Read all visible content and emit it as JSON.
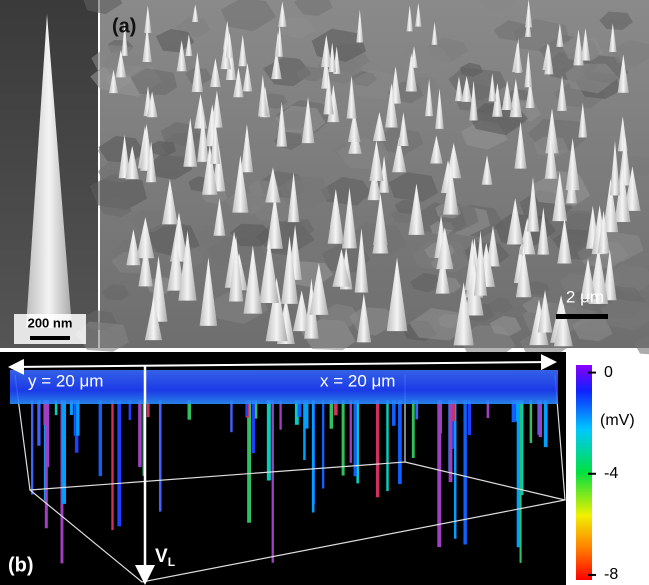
{
  "panel_a": {
    "label": "(a)",
    "inset_scale": "200 nm",
    "main_scale": "2 μm"
  },
  "panel_b": {
    "label": "(b)",
    "y_extent": "y = 20 μm",
    "x_extent": "x = 20 μm",
    "axis_label": {
      "symbol": "V",
      "subscript": "L"
    },
    "colorbar": {
      "unit": "(mV)",
      "ticks": [
        0,
        -4,
        -8
      ],
      "lim": [
        -8.2,
        0.3
      ]
    }
  }
}
